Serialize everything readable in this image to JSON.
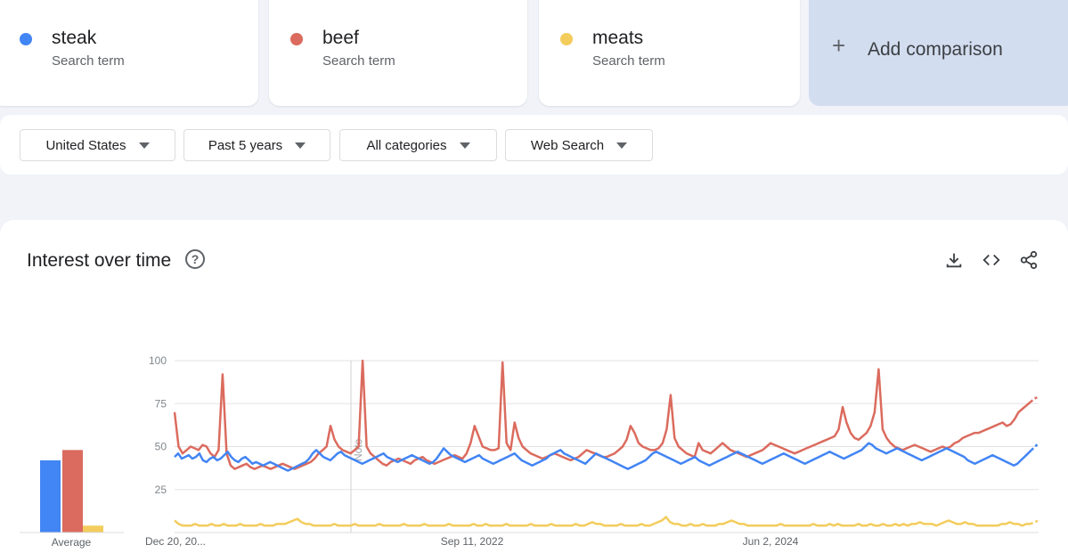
{
  "terms": [
    {
      "name": "steak",
      "sub": "Search term",
      "color": "#4285f4"
    },
    {
      "name": "beef",
      "sub": "Search term",
      "color": "#db6b5e"
    },
    {
      "name": "meats",
      "sub": "Search term",
      "color": "#f3cc5c"
    }
  ],
  "add_comparison": {
    "label": "Add comparison",
    "icon": "plus-icon"
  },
  "filters": {
    "region": "United States",
    "time": "Past 5 years",
    "category": "All categories",
    "search_type": "Web Search"
  },
  "interest": {
    "title": "Interest over time",
    "icons": [
      "help-icon",
      "download-icon",
      "embed-icon",
      "share-icon"
    ]
  },
  "chart_data": {
    "type": "line",
    "ylim": [
      0,
      100
    ],
    "yticks": [
      25,
      50,
      75,
      100
    ],
    "x_tick_labels": [
      "Dec 20, 20...",
      "Sep 11, 2022",
      "Jun 2, 2024"
    ],
    "annotation": "Note",
    "average": {
      "label": "Average",
      "values": [
        {
          "name": "steak",
          "value": 42
        },
        {
          "name": "beef",
          "value": 48
        },
        {
          "name": "meats",
          "value": 4
        }
      ]
    },
    "series": [
      {
        "name": "steak",
        "color": "#4285f4",
        "values": [
          44,
          46,
          43,
          44,
          45,
          43,
          44,
          46,
          42,
          41,
          43,
          44,
          42,
          43,
          45,
          47,
          44,
          42,
          41,
          43,
          44,
          42,
          40,
          41,
          40,
          39,
          40,
          41,
          40,
          39,
          38,
          37,
          36,
          37,
          38,
          39,
          40,
          41,
          43,
          46,
          48,
          46,
          44,
          43,
          42,
          44,
          46,
          47,
          45,
          44,
          43,
          42,
          41,
          40,
          41,
          42,
          43,
          44,
          45,
          46,
          44,
          43,
          42,
          41,
          42,
          43,
          44,
          45,
          44,
          43,
          42,
          41,
          40,
          41,
          43,
          46,
          49,
          47,
          45,
          44,
          43,
          42,
          41,
          42,
          43,
          44,
          45,
          43,
          42,
          41,
          40,
          41,
          42,
          43,
          44,
          45,
          46,
          44,
          42,
          41,
          40,
          39,
          40,
          41,
          42,
          43,
          45,
          46,
          47,
          48,
          46,
          45,
          44,
          43,
          42,
          41,
          40,
          42,
          44,
          46,
          45,
          44,
          43,
          42,
          41,
          40,
          39,
          38,
          37,
          38,
          39,
          40,
          41,
          42,
          44,
          46,
          47,
          46,
          45,
          44,
          43,
          42,
          41,
          40,
          41,
          42,
          43,
          44,
          42,
          41,
          40,
          39,
          40,
          41,
          42,
          43,
          44,
          45,
          46,
          47,
          46,
          45,
          44,
          43,
          42,
          41,
          40,
          41,
          42,
          43,
          44,
          45,
          46,
          45,
          44,
          43,
          42,
          41,
          40,
          41,
          42,
          43,
          44,
          45,
          46,
          47,
          46,
          45,
          44,
          43,
          44,
          45,
          46,
          47,
          48,
          50,
          52,
          51,
          49,
          48,
          47,
          46,
          47,
          48,
          49,
          48,
          47,
          46,
          45,
          44,
          43,
          42,
          43,
          44,
          45,
          46,
          47,
          48,
          49,
          48,
          47,
          46,
          45,
          44,
          42,
          41,
          40,
          41,
          42,
          43,
          44,
          45,
          44,
          43,
          42,
          41,
          40,
          39,
          40,
          42,
          44,
          46,
          48,
          50,
          52
        ]
      },
      {
        "name": "beef",
        "color": "#db6b5e",
        "values": [
          70,
          50,
          46,
          48,
          50,
          49,
          48,
          51,
          50,
          46,
          44,
          48,
          92,
          46,
          39,
          37,
          38,
          39,
          40,
          38,
          37,
          38,
          39,
          38,
          37,
          38,
          39,
          40,
          39,
          38,
          37,
          38,
          39,
          40,
          41,
          43,
          46,
          48,
          50,
          62,
          54,
          50,
          48,
          47,
          46,
          48,
          50,
          100,
          50,
          46,
          44,
          42,
          40,
          39,
          41,
          42,
          43,
          42,
          41,
          40,
          42,
          43,
          44,
          42,
          41,
          40,
          41,
          42,
          43,
          44,
          45,
          44,
          43,
          46,
          52,
          62,
          56,
          50,
          49,
          48,
          48,
          49,
          99,
          52,
          48,
          64,
          55,
          50,
          48,
          46,
          45,
          44,
          43,
          44,
          45,
          46,
          45,
          44,
          43,
          42,
          43,
          44,
          46,
          48,
          47,
          46,
          45,
          44,
          44,
          45,
          46,
          48,
          50,
          54,
          62,
          58,
          52,
          50,
          49,
          48,
          48,
          49,
          52,
          60,
          80,
          55,
          50,
          48,
          46,
          45,
          44,
          52,
          48,
          47,
          46,
          48,
          50,
          52,
          50,
          48,
          47,
          46,
          45,
          44,
          45,
          46,
          47,
          48,
          50,
          52,
          51,
          50,
          49,
          48,
          47,
          46,
          47,
          48,
          49,
          50,
          51,
          52,
          53,
          54,
          55,
          56,
          60,
          73,
          64,
          58,
          55,
          54,
          56,
          58,
          62,
          70,
          95,
          60,
          55,
          52,
          50,
          49,
          48,
          49,
          50,
          51,
          50,
          49,
          48,
          47,
          48,
          49,
          50,
          49,
          50,
          52,
          53,
          55,
          56,
          57,
          58,
          58,
          59,
          60,
          61,
          62,
          63,
          64,
          62,
          63,
          66,
          70,
          72,
          74,
          76,
          78,
          79
        ]
      },
      {
        "name": "meats",
        "color": "#f3cc5c",
        "values": [
          7,
          5,
          4,
          4,
          4,
          5,
          4,
          4,
          4,
          5,
          4,
          4,
          5,
          4,
          4,
          4,
          5,
          4,
          4,
          4,
          4,
          5,
          4,
          4,
          4,
          5,
          5,
          5,
          6,
          7,
          8,
          6,
          5,
          5,
          4,
          4,
          4,
          4,
          4,
          5,
          4,
          4,
          4,
          4,
          5,
          4,
          4,
          4,
          4,
          4,
          5,
          4,
          4,
          4,
          4,
          4,
          5,
          4,
          4,
          4,
          4,
          5,
          4,
          4,
          4,
          4,
          4,
          5,
          4,
          4,
          4,
          4,
          4,
          5,
          4,
          4,
          5,
          4,
          4,
          4,
          4,
          5,
          4,
          4,
          4,
          4,
          4,
          5,
          4,
          4,
          4,
          4,
          5,
          4,
          4,
          4,
          4,
          4,
          5,
          4,
          4,
          5,
          6,
          5,
          5,
          4,
          4,
          4,
          4,
          5,
          4,
          4,
          4,
          4,
          5,
          4,
          4,
          5,
          6,
          7,
          9,
          6,
          5,
          5,
          4,
          4,
          5,
          4,
          4,
          5,
          4,
          4,
          4,
          5,
          5,
          6,
          7,
          6,
          5,
          5,
          4,
          4,
          4,
          4,
          4,
          4,
          4,
          4,
          5,
          4,
          4,
          4,
          4,
          4,
          4,
          4,
          5,
          4,
          4,
          4,
          5,
          4,
          5,
          4,
          4,
          4,
          4,
          5,
          4,
          4,
          5,
          4,
          4,
          5,
          4,
          4,
          5,
          4,
          5,
          4,
          5,
          5,
          6,
          5,
          5,
          5,
          4,
          5,
          6,
          7,
          6,
          5,
          5,
          6,
          5,
          5,
          4,
          4,
          4,
          4,
          4,
          4,
          5,
          5,
          6,
          5,
          5,
          4,
          5,
          5,
          6,
          7
        ]
      }
    ]
  }
}
